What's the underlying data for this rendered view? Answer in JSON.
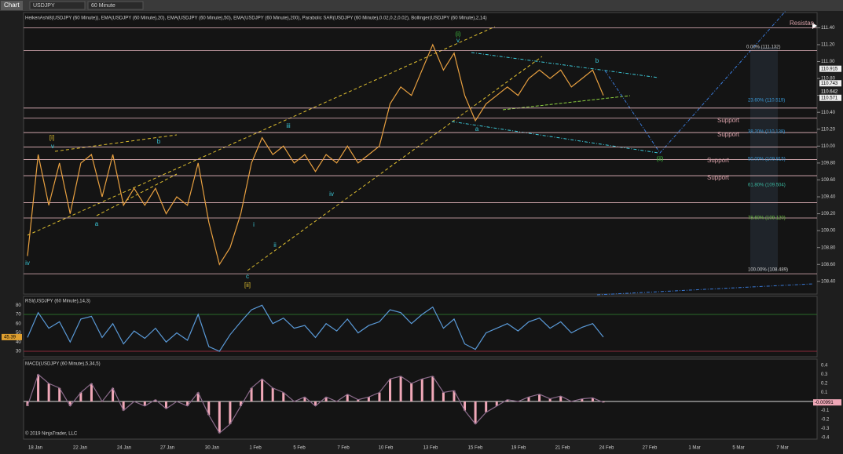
{
  "toolbar": {
    "title": "Chart",
    "symbol": "USDJPY",
    "interval": "60 Minute"
  },
  "price_panel": {
    "indicators": "HeikenAshi8(USDJPY (60 Minute)), EMA(USDJPY (60 Minute),20), EMA(USDJPY (60 Minute),50), EMA(USDJPY (60 Minute),200), Parabolic SAR(USDJPY (60 Minute),0.02,0.2,0.02), Bollinger(USDJPY (60 Minute),2,14)",
    "ylim": [
      108.25,
      111.58
    ],
    "yticks": [
      {
        "value": 111.4,
        "label": "111.40"
      },
      {
        "value": 111.2,
        "label": "111.20"
      },
      {
        "value": 111.0,
        "label": "111.00"
      },
      {
        "value": 110.8,
        "label": "110.80"
      },
      {
        "value": 110.6,
        "label": "110.60"
      },
      {
        "value": 110.4,
        "label": "110.40"
      },
      {
        "value": 110.2,
        "label": "110.20"
      },
      {
        "value": 110.0,
        "label": "110.00"
      },
      {
        "value": 109.8,
        "label": "109.80"
      },
      {
        "value": 109.6,
        "label": "109.60"
      },
      {
        "value": 109.4,
        "label": "109.40"
      },
      {
        "value": 109.2,
        "label": "109.20"
      },
      {
        "value": 109.0,
        "label": "109.00"
      },
      {
        "value": 108.8,
        "label": "108.80"
      },
      {
        "value": 108.6,
        "label": "108.60"
      },
      {
        "value": 108.4,
        "label": "108.40"
      }
    ],
    "levels": [
      111.4,
      111.13,
      110.45,
      110.33,
      110.16,
      109.99,
      109.84,
      109.65,
      109.33,
      109.15,
      108.49
    ],
    "close": [
      108.7,
      109.9,
      109.3,
      109.8,
      109.2,
      109.8,
      109.9,
      109.4,
      109.9,
      109.3,
      109.5,
      109.3,
      109.5,
      109.2,
      109.4,
      109.3,
      109.8,
      109.1,
      108.6,
      108.8,
      109.2,
      109.8,
      110.1,
      109.9,
      110.0,
      109.8,
      109.9,
      109.7,
      109.9,
      109.8,
      110.0,
      109.8,
      109.9,
      110.0,
      110.5,
      110.7,
      110.6,
      110.9,
      111.2,
      110.9,
      111.1,
      110.6,
      110.3,
      110.5,
      110.6,
      110.7,
      110.6,
      110.8,
      110.9,
      110.8,
      110.9,
      110.7,
      110.8,
      110.9,
      110.6
    ],
    "fib_labels": [
      "0.00% (111.132)",
      "23.60% (110.519)",
      "38.20% (110.138)",
      "50.00% (109.815)",
      "61.80% (109.504)",
      "78.60% (109.120)",
      "100.00% (108.489)"
    ],
    "support_labels": [
      "Support",
      "Support",
      "Support",
      "Support"
    ],
    "resistance_label": "Resistan",
    "wave_labels": [
      "(i)",
      "v",
      "[i]",
      "v",
      "b",
      "a",
      "iv",
      "c",
      "[ii]",
      "iii",
      "iv",
      "a",
      "b",
      "(ii)",
      "i",
      "ii"
    ],
    "price_tags": [
      110.915,
      110.743,
      110.642,
      110.571
    ]
  },
  "rsi_panel": {
    "title": "RSI(USDJPY (60 Minute),14,3)",
    "ylim": [
      24,
      89.6
    ],
    "yticks": [
      80,
      70,
      60,
      50,
      40,
      30
    ],
    "values": [
      45,
      72,
      55,
      62,
      40,
      65,
      68,
      45,
      60,
      38,
      52,
      44,
      55,
      40,
      50,
      42,
      70,
      35,
      30,
      48,
      62,
      75,
      80,
      60,
      66,
      55,
      58,
      45,
      60,
      52,
      65,
      50,
      58,
      62,
      75,
      72,
      60,
      70,
      78,
      55,
      65,
      38,
      32,
      50,
      55,
      60,
      52,
      62,
      66,
      55,
      62,
      50,
      56,
      60,
      45.39
    ],
    "current": 45.39
  },
  "macd_panel": {
    "title": "MACD(USDJPY (60 Minute),5,34,5)",
    "ylim": [
      -0.417,
      0.47
    ],
    "yticks": [
      0.4,
      0.3,
      0.2,
      0.1,
      0,
      -0.1,
      -0.2,
      -0.3,
      -0.4
    ],
    "values": [
      -0.05,
      0.3,
      0.2,
      0.15,
      -0.05,
      0.1,
      0.2,
      0.0,
      0.15,
      -0.1,
      0.0,
      -0.05,
      0.02,
      -0.08,
      0.0,
      -0.05,
      0.1,
      -0.15,
      -0.35,
      -0.25,
      -0.05,
      0.15,
      0.25,
      0.15,
      0.1,
      0.0,
      0.05,
      -0.05,
      0.05,
      0.0,
      0.08,
      0.02,
      0.05,
      0.1,
      0.25,
      0.28,
      0.2,
      0.25,
      0.28,
      0.1,
      0.12,
      -0.1,
      -0.25,
      -0.12,
      -0.05,
      0.02,
      0.0,
      0.05,
      0.08,
      0.03,
      0.06,
      0.0,
      0.03,
      0.04,
      -0.00991
    ],
    "current": -0.00991,
    "copyright": "© 2019 NinjaTrader, LLC"
  },
  "x_axis": {
    "labels": [
      "18 Jan",
      "22 Jan",
      "24 Jan",
      "27 Jan",
      "30 Jan",
      "1 Feb",
      "5 Feb",
      "7 Feb",
      "10 Feb",
      "13 Feb",
      "15 Feb",
      "19 Feb",
      "21 Feb",
      "24 Feb",
      "27 Feb",
      "1 Mar",
      "5 Mar",
      "7 Mar"
    ]
  }
}
